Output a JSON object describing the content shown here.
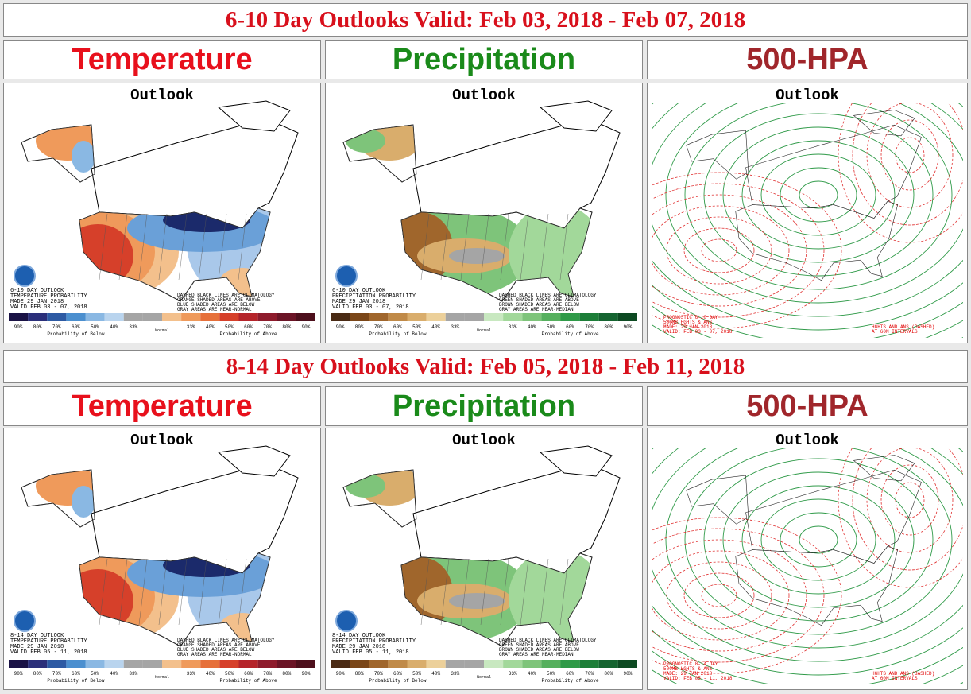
{
  "sections": [
    {
      "title": "6-10 Day Outlooks Valid: Feb 03, 2018 - Feb 07, 2018",
      "panels": [
        {
          "heading": "Temperature",
          "subheading": "Outlook",
          "caption_left": [
            "6-10 DAY OUTLOOK",
            "TEMPERATURE PROBABILITY",
            "MADE 29 JAN 2018",
            "VALID FEB 03 - 07, 2018"
          ],
          "caption_right": [
            "DASHED BLACK LINES ARE CLIMATOLOGY",
            "ORANGE SHADED AREAS ARE ABOVE",
            "BLUE SHADED AREAS ARE BELOW",
            "GRAY AREAS ARE NEAR-NORMAL"
          ],
          "legend": {
            "labels": [
              "90%",
              "80%",
              "70%",
              "60%",
              "50%",
              "40%",
              "33%",
              "33%",
              "40%",
              "50%",
              "60%",
              "70%",
              "80%",
              "90%"
            ],
            "below": "Probability of Below",
            "normal": "Normal",
            "above": "Probability of Above"
          }
        },
        {
          "heading": "Precipitation",
          "subheading": "Outlook",
          "caption_left": [
            "6-10 DAY OUTLOOK",
            "PRECIPITATION PROBABILITY",
            "MADE 29 JAN 2018",
            "VALID FEB 03 - 07, 2018"
          ],
          "caption_right": [
            "DASHED BLACK LINES ARE CLIMATOLOGY",
            "GREEN SHADED AREAS ARE ABOVE",
            "BROWN SHADED AREAS ARE BELOW",
            "GRAY AREAS ARE NEAR-MEDIAN"
          ],
          "legend": {
            "labels": [
              "90%",
              "80%",
              "70%",
              "60%",
              "50%",
              "40%",
              "33%",
              "33%",
              "40%",
              "50%",
              "60%",
              "70%",
              "80%",
              "90%"
            ],
            "below": "Probability of Below",
            "normal": "Normal",
            "above": "Probability of Above"
          }
        },
        {
          "heading": "500-HPA",
          "subheading": "Outlook",
          "caption_left": [
            "PROGNOSTIC 6-10 DAY",
            "500MB HGHTS & ANS",
            "MADE: 29 JAN 2018",
            "VALID: FEB 03 - 07, 2018"
          ],
          "caption_right": [
            "HGHTS AND ANS (DASHED)",
            "AT 60M INTERVALS"
          ]
        }
      ]
    },
    {
      "title": "8-14 Day Outlooks Valid: Feb 05, 2018 - Feb 11, 2018",
      "panels": [
        {
          "heading": "Temperature",
          "subheading": "Outlook",
          "caption_left": [
            "8-14 DAY OUTLOOK",
            "TEMPERATURE PROBABILITY",
            "MADE 29 JAN 2018",
            "VALID FEB 05 - 11, 2018"
          ],
          "caption_right": [
            "DASHED BLACK LINES ARE CLIMATOLOGY",
            "ORANGE SHADED AREAS ARE ABOVE",
            "BLUE SHADED AREAS ARE BELOW",
            "GRAY AREAS ARE NEAR-NORMAL"
          ],
          "legend": {
            "labels": [
              "90%",
              "80%",
              "70%",
              "60%",
              "50%",
              "40%",
              "33%",
              "33%",
              "40%",
              "50%",
              "60%",
              "70%",
              "80%",
              "90%"
            ],
            "below": "Probability of Below",
            "normal": "Normal",
            "above": "Probability of Above"
          }
        },
        {
          "heading": "Precipitation",
          "subheading": "Outlook",
          "caption_left": [
            "8-14 DAY OUTLOOK",
            "PRECIPITATION PROBABILITY",
            "MADE 29 JAN 2018",
            "VALID FEB 05 - 11, 2018"
          ],
          "caption_right": [
            "DASHED BLACK LINES ARE CLIMATOLOGY",
            "GREEN SHADED AREAS ARE ABOVE",
            "BROWN SHADED AREAS ARE BELOW",
            "GRAY AREAS ARE NEAR-MEDIAN"
          ],
          "legend": {
            "labels": [
              "90%",
              "80%",
              "70%",
              "60%",
              "50%",
              "40%",
              "33%",
              "33%",
              "40%",
              "50%",
              "60%",
              "70%",
              "80%",
              "90%"
            ],
            "below": "Probability of Below",
            "normal": "Normal",
            "above": "Probability of Above"
          }
        },
        {
          "heading": "500-HPA",
          "subheading": "Outlook",
          "caption_left": [
            "PROGNOSTIC 8-14 DAY",
            "500MB HGHTS & ANS",
            "MADE: 29 JAN 2018",
            "VALID: FEB 05 - 11, 2018"
          ],
          "caption_right": [
            "HGHTS AND ANS (DASHED)",
            "AT 60M INTERVALS"
          ]
        }
      ]
    }
  ]
}
